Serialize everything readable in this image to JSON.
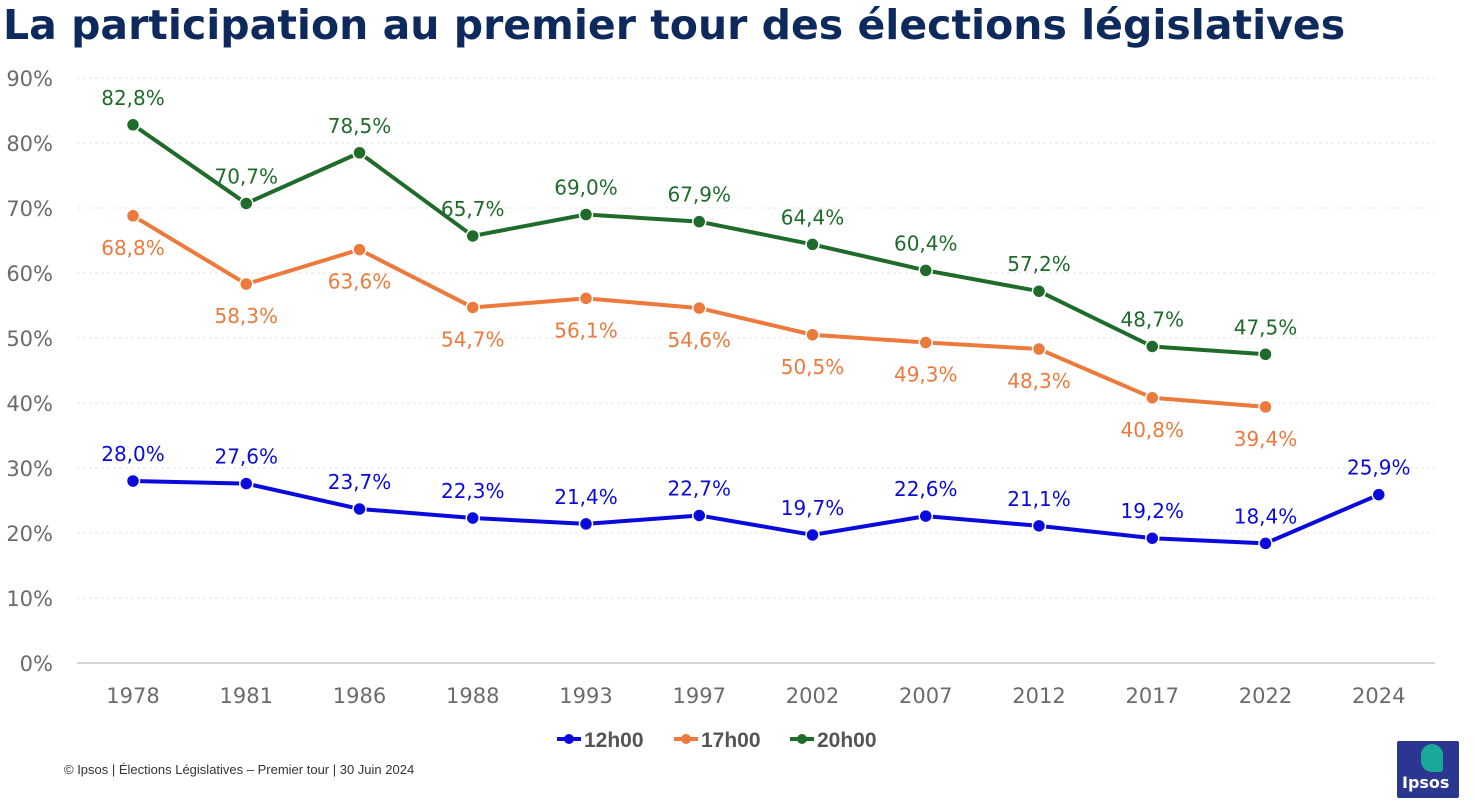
{
  "title": "La participation au premier tour des élections législatives",
  "footer": "© Ipsos | Élections Législatives – Premier tour | 30 Juin 2024",
  "logo_text": "Ipsos",
  "chart_data": {
    "type": "line",
    "title": "La participation au premier tour des élections législatives",
    "xlabel": "",
    "ylabel": "",
    "ylim": [
      0,
      90
    ],
    "yticks": [
      0,
      10,
      20,
      30,
      40,
      50,
      60,
      70,
      80,
      90
    ],
    "ytick_labels": [
      "0%",
      "10%",
      "20%",
      "30%",
      "40%",
      "50%",
      "60%",
      "70%",
      "80%",
      "90%"
    ],
    "grid": true,
    "legend_position": "bottom-center",
    "categories": [
      "1978",
      "1981",
      "1986",
      "1988",
      "1993",
      "1997",
      "2002",
      "2007",
      "2012",
      "2017",
      "2022",
      "2024"
    ],
    "series": [
      {
        "name": "12h00",
        "color": "#0a0adc",
        "values": [
          28.0,
          27.6,
          23.7,
          22.3,
          21.4,
          22.7,
          19.7,
          22.6,
          21.1,
          19.2,
          18.4,
          25.9
        ],
        "labels": [
          "28,0%",
          "27,6%",
          "23,7%",
          "22,3%",
          "21,4%",
          "22,7%",
          "19,7%",
          "22,6%",
          "21,1%",
          "19,2%",
          "18,4%",
          "25,9%"
        ],
        "label_position": [
          "above",
          "above",
          "above",
          "above",
          "above",
          "above",
          "above",
          "above",
          "above",
          "above",
          "above",
          "above"
        ]
      },
      {
        "name": "17h00",
        "color": "#ec7a3c",
        "values": [
          68.8,
          58.3,
          63.6,
          54.7,
          56.1,
          54.6,
          50.5,
          49.3,
          48.3,
          40.8,
          39.4,
          null
        ],
        "labels": [
          "68,8%",
          "58,3%",
          "63,6%",
          "54,7%",
          "56,1%",
          "54,6%",
          "50,5%",
          "49,3%",
          "48,3%",
          "40,8%",
          "39,4%",
          null
        ],
        "label_position": [
          "below",
          "below",
          "below",
          "below",
          "below",
          "below",
          "below",
          "below",
          "below",
          "below",
          "below",
          "below"
        ]
      },
      {
        "name": "20h00",
        "color": "#1e6b2a",
        "values": [
          82.8,
          70.7,
          78.5,
          65.7,
          69.0,
          67.9,
          64.4,
          60.4,
          57.2,
          48.7,
          47.5,
          null
        ],
        "labels": [
          "82,8%",
          "70,7%",
          "78,5%",
          "65,7%",
          "69,0%",
          "67,9%",
          "64,4%",
          "60,4%",
          "57,2%",
          "48,7%",
          "47,5%",
          null
        ],
        "label_position": [
          "above",
          "above",
          "above",
          "above",
          "above",
          "above",
          "above",
          "above",
          "above",
          "above",
          "above",
          "above"
        ]
      }
    ]
  }
}
